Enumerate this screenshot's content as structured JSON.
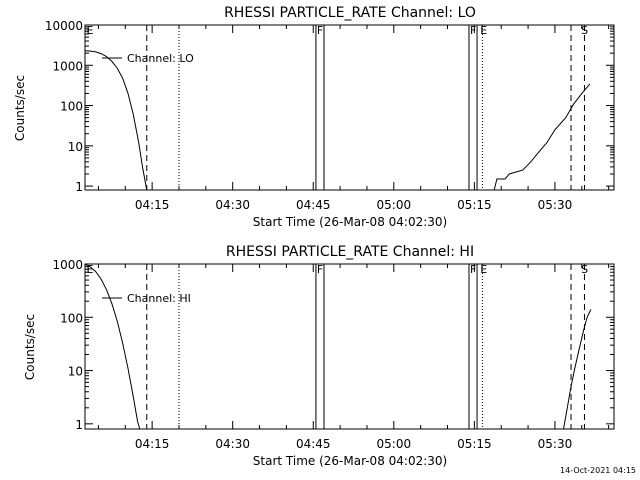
{
  "footer": {
    "timestamp": "14-Oct-2021 04:15"
  },
  "time_axis": {
    "ticks": [
      "04:15",
      "04:30",
      "04:45",
      "05:00",
      "05:15",
      "05:30"
    ],
    "tick_minutes": [
      12.5,
      27.5,
      42.5,
      57.5,
      72.5,
      87.5
    ],
    "range_minutes": [
      0,
      98.5
    ],
    "start_label": "Start Time (26-Mar-08 04:02:30)"
  },
  "chart_data": [
    {
      "type": "line",
      "title": "RHESSI PARTICLE_RATE Channel: LO",
      "xlabel": "Start Time (26-Mar-08 04:02:30)",
      "ylabel": "Counts/sec",
      "yscale": "log",
      "ylim": [
        0.8,
        10000
      ],
      "y_ticks": [
        {
          "v": 1,
          "label": "1"
        },
        {
          "v": 10,
          "label": "10"
        },
        {
          "v": 100,
          "label": "100"
        },
        {
          "v": 1000,
          "label": "1000"
        },
        {
          "v": 10000,
          "label": "10000"
        }
      ],
      "legend": "Channel: LO",
      "series": [
        {
          "points": [
            [
              0,
              2300
            ],
            [
              1,
              2250
            ],
            [
              2,
              2150
            ],
            [
              3,
              1950
            ],
            [
              4,
              1650
            ],
            [
              5,
              1250
            ],
            [
              6,
              850
            ],
            [
              7,
              480
            ],
            [
              8,
              200
            ],
            [
              9,
              60
            ],
            [
              10,
              12
            ],
            [
              10.7,
              3
            ],
            [
              11.3,
              1.1
            ],
            [
              11.5,
              0.8
            ]
          ]
        },
        {
          "points": [
            [
              76.2,
              0.8
            ],
            [
              76.7,
              1.5
            ],
            [
              78.2,
              1.5
            ],
            [
              79,
              2
            ],
            [
              81.5,
              2.5
            ],
            [
              83,
              4
            ],
            [
              84.5,
              7
            ],
            [
              86,
              12
            ],
            [
              87.5,
              25
            ],
            [
              89.5,
              50
            ],
            [
              91,
              110
            ],
            [
              92.5,
              200
            ],
            [
              94,
              340
            ]
          ]
        }
      ],
      "markers": [
        {
          "t": 0.1,
          "label": "E"
        },
        {
          "t": 43.0,
          "label": "F"
        },
        {
          "t": 71.5,
          "label": "F"
        },
        {
          "t": 73.4,
          "label": "E"
        },
        {
          "t": 92.2,
          "label": "S"
        }
      ]
    },
    {
      "type": "line",
      "title": "RHESSI PARTICLE_RATE Channel: HI",
      "xlabel": "Start Time (26-Mar-08 04:02:30)",
      "ylabel": "Counts/sec",
      "yscale": "log",
      "ylim": [
        0.8,
        1000
      ],
      "y_ticks": [
        {
          "v": 1,
          "label": "1"
        },
        {
          "v": 10,
          "label": "10"
        },
        {
          "v": 100,
          "label": "100"
        },
        {
          "v": 1000,
          "label": "1000"
        }
      ],
      "legend": "Channel: HI",
      "series": [
        {
          "points": [
            [
              0,
              1000
            ],
            [
              1,
              880
            ],
            [
              2,
              720
            ],
            [
              3,
              520
            ],
            [
              4,
              330
            ],
            [
              5,
              180
            ],
            [
              6,
              85
            ],
            [
              7,
              33
            ],
            [
              8,
              11
            ],
            [
              9,
              3.2
            ],
            [
              9.8,
              1.1
            ],
            [
              10.2,
              0.8
            ]
          ]
        },
        {
          "points": [
            [
              89.1,
              0.8
            ],
            [
              89.8,
              2
            ],
            [
              90.5,
              5
            ],
            [
              91.2,
              11
            ],
            [
              92,
              25
            ],
            [
              92.8,
              55
            ],
            [
              93.5,
              100
            ],
            [
              94.2,
              140
            ]
          ]
        }
      ],
      "markers": [
        {
          "t": 0.1,
          "label": "E"
        },
        {
          "t": 43.0,
          "label": "F"
        },
        {
          "t": 71.5,
          "label": "F"
        },
        {
          "t": 73.4,
          "label": "E"
        },
        {
          "t": 92.2,
          "label": "S"
        }
      ]
    }
  ],
  "vertical_lines": {
    "dashed": [
      11.5,
      90.5,
      93.0
    ],
    "dotted": [
      17.5,
      74.0
    ],
    "gap_lines": [
      43.0,
      44.5,
      71.5,
      73.0
    ]
  }
}
